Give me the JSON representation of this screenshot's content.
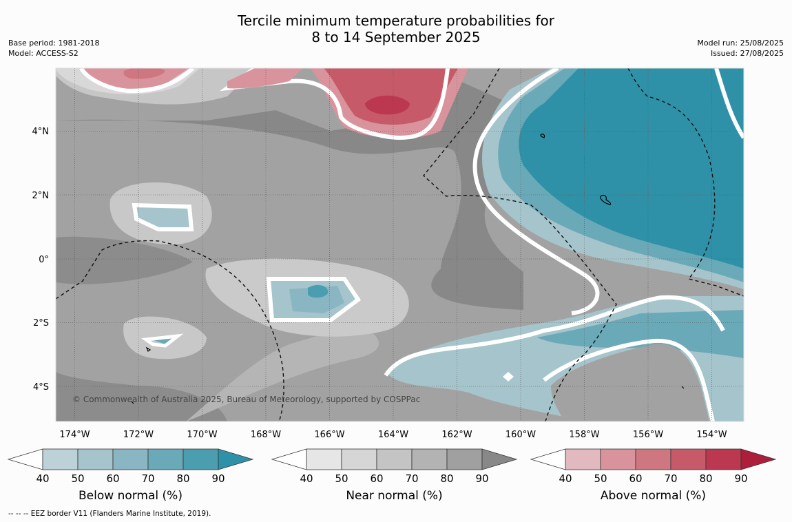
{
  "title_line1": "Tercile minimum temperature probabilities for",
  "title_line2": "8 to 14 September 2025",
  "base_period": "Base period: 1981-2018",
  "model": "Model: ACCESS-S2",
  "model_run": "Model run: 25/08/2025",
  "issued": "Issued: 27/08/2025",
  "copyright": "© Commonwealth of Australia 2025, Bureau of Meteorology, supported by COSPPac",
  "footnote": "--  --  -- EEZ border V11 (Flanders Marine Institute, 2019).",
  "lon_labels": [
    "174°W",
    "172°W",
    "170°W",
    "168°W",
    "166°W",
    "164°W",
    "162°W",
    "160°W",
    "158°W",
    "156°W",
    "154°W"
  ],
  "lat_labels": [
    "4°N",
    "2°N",
    "0°",
    "2°S",
    "4°S"
  ],
  "colorbars": [
    {
      "name": "Below normal (%)",
      "ticks": [
        "40",
        "50",
        "60",
        "70",
        "80",
        "90"
      ],
      "colors": [
        "#bcd2d8",
        "#a5c4cb",
        "#8ab6c3",
        "#6aa9b8",
        "#4a9eb0",
        "#2f91a7"
      ]
    },
    {
      "name": "Near normal (%)",
      "ticks": [
        "40",
        "50",
        "60",
        "70",
        "80",
        "90"
      ],
      "colors": [
        "#e6e6e6",
        "#d6d6d6",
        "#c4c4c4",
        "#b3b3b3",
        "#a0a0a0",
        "#888888"
      ]
    },
    {
      "name": "Above normal (%)",
      "ticks": [
        "40",
        "50",
        "60",
        "70",
        "80",
        "90"
      ],
      "colors": [
        "#e3b9c0",
        "#d9939c",
        "#cf7781",
        "#c65a68",
        "#bc3850",
        "#ad1e3a"
      ]
    }
  ]
}
